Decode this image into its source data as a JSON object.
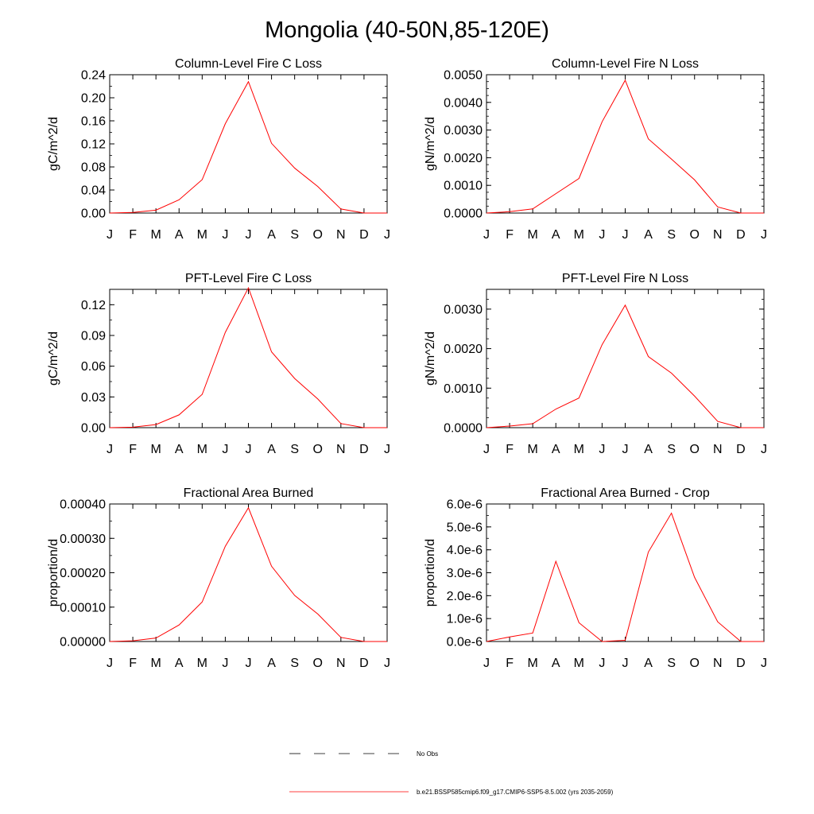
{
  "figure": {
    "title": "Mongolia (40-50N,85-120E)"
  },
  "legend": {
    "items": [
      {
        "label": "No Obs",
        "style": "dashed",
        "color": "#000000"
      },
      {
        "label": "b.e21.BSSP585cmip6.f09_g17.CMIP6-SSP5-8.5.002 (yrs 2035-2059)",
        "style": "solid",
        "color": "#ff0000"
      }
    ]
  },
  "chart_data": [
    {
      "type": "line",
      "title": "Column-Level Fire C Loss",
      "ylabel": "gC/m^2/d",
      "xlabel": "",
      "x": [
        "J",
        "F",
        "M",
        "A",
        "M",
        "J",
        "J",
        "A",
        "S",
        "O",
        "N",
        "D",
        "J"
      ],
      "ylim": [
        0,
        0.24
      ],
      "yticks": [
        "0.00",
        "0.04",
        "0.08",
        "0.12",
        "0.16",
        "0.20",
        "0.24"
      ],
      "yminor": 0.02,
      "series": [
        {
          "values": [
            0.0,
            0.001,
            0.005,
            0.023,
            0.058,
            0.155,
            0.228,
            0.121,
            0.078,
            0.046,
            0.007,
            0.0,
            0.0
          ],
          "color": "#ff0000"
        }
      ]
    },
    {
      "type": "line",
      "title": "Column-Level Fire N Loss",
      "ylabel": "gN/m^2/d",
      "xlabel": "",
      "x": [
        "J",
        "F",
        "M",
        "A",
        "M",
        "J",
        "J",
        "A",
        "S",
        "O",
        "N",
        "D",
        "J"
      ],
      "ylim": [
        0,
        0.005
      ],
      "yticks": [
        "0.0000",
        "0.0010",
        "0.0020",
        "0.0030",
        "0.0040",
        "0.0050"
      ],
      "yminor": 0.00025,
      "series": [
        {
          "values": [
            0.0,
            5e-05,
            0.00015,
            0.0007,
            0.00125,
            0.0033,
            0.0048,
            0.00268,
            0.00195,
            0.0012,
            0.00022,
            0.0,
            0.0
          ],
          "color": "#ff0000"
        }
      ]
    },
    {
      "type": "line",
      "title": "PFT-Level Fire C Loss",
      "ylabel": "gC/m^2/d",
      "xlabel": "",
      "x": [
        "J",
        "F",
        "M",
        "A",
        "M",
        "J",
        "J",
        "A",
        "S",
        "O",
        "N",
        "D",
        "J"
      ],
      "ylim": [
        0,
        0.135
      ],
      "yticks": [
        "0.00",
        "0.03",
        "0.06",
        "0.09",
        "0.12"
      ],
      "yminor": 0.015,
      "series": [
        {
          "values": [
            0.0,
            0.0005,
            0.003,
            0.0125,
            0.0325,
            0.093,
            0.1365,
            0.074,
            0.048,
            0.028,
            0.004,
            0.0,
            0.0
          ],
          "color": "#ff0000"
        }
      ]
    },
    {
      "type": "line",
      "title": "PFT-Level Fire N Loss",
      "ylabel": "gN/m^2/d",
      "xlabel": "",
      "x": [
        "J",
        "F",
        "M",
        "A",
        "M",
        "J",
        "J",
        "A",
        "S",
        "O",
        "N",
        "D",
        "J"
      ],
      "ylim": [
        0,
        0.0035
      ],
      "yticks": [
        "0.0000",
        "0.0010",
        "0.0020",
        "0.0030"
      ],
      "yminor": 0.00025,
      "series": [
        {
          "values": [
            0.0,
            4e-05,
            0.0001,
            0.00047,
            0.00075,
            0.0021,
            0.0031,
            0.0018,
            0.00138,
            0.0008,
            0.00016,
            0.0,
            0.0
          ],
          "color": "#ff0000"
        }
      ]
    },
    {
      "type": "line",
      "title": "Fractional Area Burned",
      "ylabel": "proportion/d",
      "xlabel": "",
      "x": [
        "J",
        "F",
        "M",
        "A",
        "M",
        "J",
        "J",
        "A",
        "S",
        "O",
        "N",
        "D",
        "J"
      ],
      "ylim": [
        0,
        0.0004
      ],
      "yticks": [
        "0.00000",
        "0.00010",
        "0.00020",
        "0.00030",
        "0.00040"
      ],
      "yminor": 5e-05,
      "series": [
        {
          "values": [
            0.0,
            2e-06,
            1e-05,
            4.8e-05,
            0.000115,
            0.000277,
            0.000389,
            0.000219,
            0.000134,
            8e-05,
            1.2e-05,
            0.0,
            0.0
          ],
          "color": "#ff0000"
        }
      ]
    },
    {
      "type": "line",
      "title": "Fractional Area Burned - Crop",
      "ylabel": "proportion/d",
      "xlabel": "",
      "x": [
        "J",
        "F",
        "M",
        "A",
        "M",
        "J",
        "J",
        "A",
        "S",
        "O",
        "N",
        "D",
        "J"
      ],
      "ylim": [
        0,
        6e-06
      ],
      "yticks": [
        "0.0e-6",
        "1.0e-6",
        "2.0e-6",
        "3.0e-6",
        "4.0e-6",
        "5.0e-6",
        "6.0e-6"
      ],
      "yminor": 5e-07,
      "series": [
        {
          "values": [
            0.0,
            2e-07,
            3.7e-07,
            3.5e-06,
            8.2e-07,
            0.0,
            5e-08,
            3.9e-06,
            5.6e-06,
            2.8e-06,
            8.6e-07,
            0.0,
            0.0
          ],
          "color": "#ff0000"
        }
      ]
    }
  ]
}
